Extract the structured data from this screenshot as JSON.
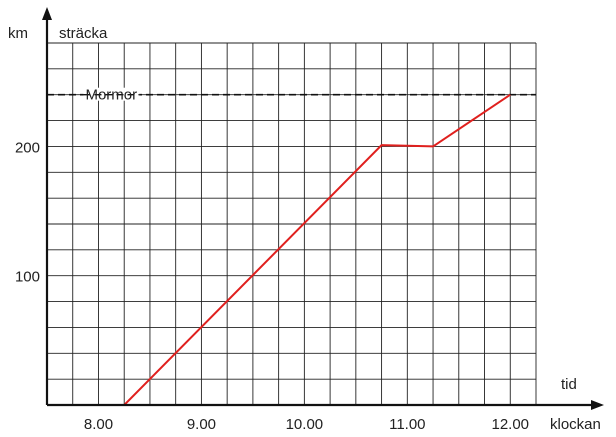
{
  "chart_data": {
    "type": "line",
    "y_unit": "km",
    "y_axis_label": "sträcka",
    "x_axis_label_top": "tid",
    "x_axis_label_bottom": "klockan",
    "x_ticks": [
      {
        "value": 8.0,
        "label": "8.00"
      },
      {
        "value": 9.0,
        "label": "9.00"
      },
      {
        "value": 10.0,
        "label": "10.00"
      },
      {
        "value": 11.0,
        "label": "11.00"
      },
      {
        "value": 12.0,
        "label": "12.00"
      }
    ],
    "y_ticks": [
      {
        "value": 100,
        "label": "100"
      },
      {
        "value": 200,
        "label": "200"
      }
    ],
    "xlim": [
      7.5,
      12.25
    ],
    "ylim": [
      0,
      280
    ],
    "grid": true,
    "grid_x_step": 0.25,
    "grid_y_step": 20,
    "reference_line": {
      "label": "Mormor",
      "y": 240,
      "style": "dashed"
    },
    "series": [
      {
        "color": "#e0201e",
        "points": [
          {
            "x": 8.25,
            "y": 0
          },
          {
            "x": 10.75,
            "y": 201
          },
          {
            "x": 11.25,
            "y": 200
          },
          {
            "x": 12.0,
            "y": 240
          }
        ]
      }
    ],
    "colors": {
      "line": "#e0201e",
      "grid": "#222222",
      "axis": "#111111"
    }
  }
}
